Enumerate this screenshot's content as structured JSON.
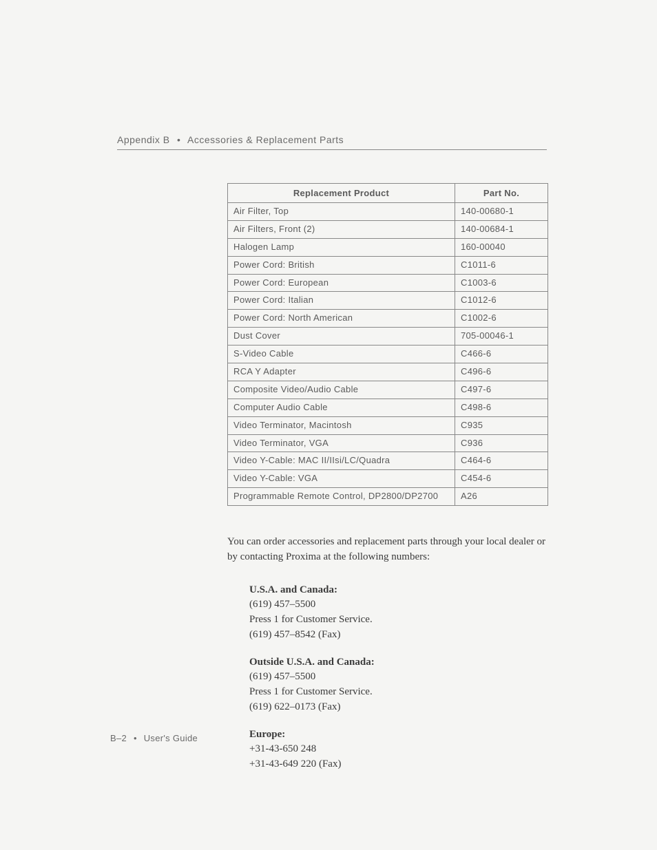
{
  "header": {
    "appendix": "Appendix B",
    "section_title": "Accessories & Replacement Parts"
  },
  "table": {
    "columns": [
      "Replacement Product",
      "Part No."
    ],
    "rows": [
      [
        "Air Filter, Top",
        "140-00680-1"
      ],
      [
        "Air Filters, Front (2)",
        "140-00684-1"
      ],
      [
        "Halogen Lamp",
        "160-00040"
      ],
      [
        "Power Cord: British",
        "C1011-6"
      ],
      [
        "Power Cord: European",
        "C1003-6"
      ],
      [
        "Power Cord: Italian",
        "C1012-6"
      ],
      [
        "Power Cord: North American",
        "C1002-6"
      ],
      [
        "Dust Cover",
        "705-00046-1"
      ],
      [
        "S-Video Cable",
        "C466-6"
      ],
      [
        "RCA Y Adapter",
        "C496-6"
      ],
      [
        "Composite Video/Audio Cable",
        "C497-6"
      ],
      [
        "Computer Audio Cable",
        "C498-6"
      ],
      [
        "Video Terminator, Macintosh",
        "C935"
      ],
      [
        "Video Terminator, VGA",
        "C936"
      ],
      [
        "Video Y-Cable: MAC II/IIsi/LC/Quadra",
        "C464-6"
      ],
      [
        "Video Y-Cable: VGA",
        "C454-6"
      ],
      [
        "Programmable Remote Control, DP2800/DP2700",
        "A26"
      ]
    ]
  },
  "body_text": "You can order accessories and replacement parts through your local dealer or by contacting Proxima at the following numbers:",
  "contacts": [
    {
      "heading": "U.S.A. and Canada:",
      "lines": [
        "(619) 457–5500",
        "Press 1 for Customer Service.",
        "(619) 457–8542 (Fax)"
      ]
    },
    {
      "heading": "Outside U.S.A. and Canada:",
      "lines": [
        "(619) 457–5500",
        "Press 1 for Customer Service.",
        "(619) 622–0173 (Fax)"
      ]
    },
    {
      "heading": "Europe:",
      "lines": [
        "+31-43-650 248",
        "+31-43-649 220 (Fax)"
      ]
    }
  ],
  "footer": {
    "page_num": "B–2",
    "doc_title": "User's Guide"
  },
  "styling": {
    "page_bg": "#f5f5f3",
    "text_color": "#4a4a4a",
    "header_color": "#6a6a6a",
    "border_color": "#888888",
    "body_font": "Georgia, serif",
    "ui_font": "Arial, sans-serif",
    "body_fontsize": 15,
    "table_fontsize": 13,
    "header_fontsize": 14
  }
}
